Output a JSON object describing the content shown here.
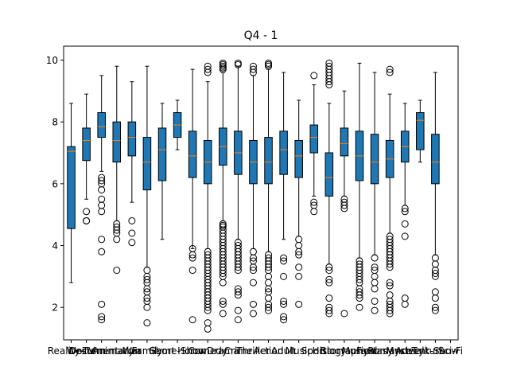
{
  "chart_data": {
    "type": "boxplot",
    "title": "Q4 - 1",
    "xlabel": "",
    "ylabel": "",
    "ylim": [
      0.95,
      10.45
    ],
    "yticks": [
      2,
      4,
      6,
      8,
      10
    ],
    "grid": false,
    "colors": {
      "box": "#1f77b4",
      "median": "#ff7f0e",
      "line": "#000000",
      "background": "#ffffff"
    },
    "categories": [
      "Reality-TV",
      "Western",
      "Documentary",
      "Animation",
      "War",
      "Family",
      "Short",
      "Game-Show",
      "Horror",
      "Comedy",
      "Drama",
      "Crime",
      "Thriller",
      "Action",
      "Adult",
      "Music",
      "Sport",
      "History",
      "Biography",
      "Musical",
      "Fantasy",
      "Romance",
      "Mystery",
      "Adventure",
      "Talk-Show",
      "Sci-Fi"
    ],
    "boxes": [
      {
        "name": "Reality-TV",
        "whislo": 2.8,
        "q1": 4.55,
        "med": 7.05,
        "q3": 7.2,
        "whishi": 8.6,
        "fliers": []
      },
      {
        "name": "Western",
        "whislo": 5.5,
        "q1": 6.75,
        "med": 7.4,
        "q3": 7.8,
        "whishi": 8.9,
        "fliers": [
          5.1,
          4.8,
          4.8
        ]
      },
      {
        "name": "Documentary",
        "whislo": 6.4,
        "q1": 7.5,
        "med": 7.85,
        "q3": 8.3,
        "whishi": 9.5,
        "fliers": [
          6.2,
          6.1,
          6.0,
          5.8,
          5.5,
          5.3,
          5.1,
          4.2,
          3.8,
          2.1,
          1.7,
          1.6
        ]
      },
      {
        "name": "Animation",
        "whislo": 4.8,
        "q1": 6.7,
        "med": 7.4,
        "q3": 8.0,
        "whishi": 9.8,
        "fliers": [
          4.7,
          4.6,
          4.5,
          4.4,
          4.2,
          3.2
        ]
      },
      {
        "name": "War",
        "whislo": 5.4,
        "q1": 6.9,
        "med": 7.5,
        "q3": 8.0,
        "whishi": 9.3,
        "fliers": [
          4.8,
          4.4,
          4.1
        ]
      },
      {
        "name": "Family",
        "whislo": 3.3,
        "q1": 5.8,
        "med": 6.7,
        "q3": 7.5,
        "whishi": 9.8,
        "fliers": [
          3.2,
          3.0,
          2.9,
          2.8,
          2.6,
          2.5,
          2.3,
          2.2,
          2.0,
          1.5
        ]
      },
      {
        "name": "Short",
        "whislo": 4.2,
        "q1": 6.1,
        "med": 7.1,
        "q3": 7.8,
        "whishi": 8.6,
        "fliers": []
      },
      {
        "name": "Game-Show",
        "whislo": 7.1,
        "q1": 7.5,
        "med": 7.9,
        "q3": 8.3,
        "whishi": 8.7,
        "fliers": []
      },
      {
        "name": "Horror",
        "whislo": 3.9,
        "q1": 6.2,
        "med": 6.9,
        "q3": 7.7,
        "whishi": 9.7,
        "fliers": [
          3.9,
          3.7,
          3.6,
          3.2,
          1.6
        ]
      },
      {
        "name": "Comedy",
        "whislo": 3.9,
        "q1": 6.0,
        "med": 6.7,
        "q3": 7.4,
        "whishi": 9.3,
        "fliers": [
          9.8,
          9.7,
          9.6,
          3.8,
          3.7,
          3.6,
          3.5,
          3.4,
          3.3,
          3.2,
          3.1,
          3.0,
          2.9,
          2.8,
          2.7,
          2.6,
          2.5,
          2.4,
          2.3,
          2.2,
          2.1,
          2.0,
          1.9,
          1.5,
          1.3
        ]
      },
      {
        "name": "Drama",
        "whislo": 4.8,
        "q1": 6.6,
        "med": 7.2,
        "q3": 7.8,
        "whishi": 9.6,
        "fliers": [
          9.9,
          9.85,
          9.8,
          9.75,
          9.7,
          4.7,
          4.65,
          4.6,
          4.5,
          4.4,
          4.3,
          4.2,
          4.1,
          4.0,
          3.9,
          3.8,
          3.7,
          3.6,
          3.5,
          3.4,
          3.3,
          3.2,
          3.1,
          3.0,
          2.8,
          2.2,
          2.1,
          1.8
        ]
      },
      {
        "name": "Crime",
        "whislo": 4.2,
        "q1": 6.3,
        "med": 7.0,
        "q3": 7.7,
        "whishi": 9.8,
        "fliers": [
          9.9,
          9.85,
          4.1,
          4.0,
          3.9,
          3.8,
          3.7,
          3.6,
          3.5,
          3.4,
          3.3,
          3.2,
          2.6,
          2.5,
          2.4,
          1.9,
          1.6
        ]
      },
      {
        "name": "Thriller",
        "whislo": 3.9,
        "q1": 6.0,
        "med": 6.7,
        "q3": 7.4,
        "whishi": 9.5,
        "fliers": [
          9.8,
          9.7,
          9.6,
          3.8,
          3.6,
          3.5,
          3.3,
          3.2,
          2.8,
          2.1,
          1.8
        ]
      },
      {
        "name": "Action",
        "whislo": 3.8,
        "q1": 6.0,
        "med": 6.7,
        "q3": 7.5,
        "whishi": 9.7,
        "fliers": [
          9.9,
          9.85,
          9.8,
          3.7,
          3.6,
          3.5,
          3.4,
          3.3,
          3.2,
          3.0,
          2.8,
          2.6,
          2.5,
          2.3,
          2.1,
          2.0,
          1.9
        ]
      },
      {
        "name": "Adult",
        "whislo": 4.2,
        "q1": 6.3,
        "med": 7.1,
        "q3": 7.7,
        "whishi": 9.6,
        "fliers": [
          3.6,
          3.5,
          3.0,
          2.2,
          2.1,
          1.7,
          1.6
        ]
      },
      {
        "name": "Music",
        "whislo": 4.3,
        "q1": 6.2,
        "med": 6.9,
        "q3": 7.4,
        "whishi": 8.7,
        "fliers": [
          4.2,
          4.0,
          3.8,
          3.7,
          3.3,
          3.0,
          2.1
        ]
      },
      {
        "name": "Sport",
        "whislo": 5.6,
        "q1": 7.0,
        "med": 7.5,
        "q3": 7.9,
        "whishi": 9.2,
        "fliers": [
          9.5,
          5.4,
          5.3,
          5.1
        ]
      },
      {
        "name": "History",
        "whislo": 3.4,
        "q1": 5.6,
        "med": 6.2,
        "q3": 7.0,
        "whishi": 8.6,
        "fliers": [
          9.9,
          9.8,
          9.7,
          9.6,
          9.5,
          9.4,
          9.3,
          9.2,
          3.3,
          3.2,
          2.9,
          2.8,
          2.3,
          2.0,
          1.9,
          1.8
        ]
      },
      {
        "name": "Biography",
        "whislo": 5.6,
        "q1": 6.9,
        "med": 7.3,
        "q3": 7.8,
        "whishi": 9.0,
        "fliers": [
          5.5,
          5.4,
          5.3,
          5.2,
          1.8
        ]
      },
      {
        "name": "Musical",
        "whislo": 3.6,
        "q1": 6.1,
        "med": 6.9,
        "q3": 7.7,
        "whishi": 9.9,
        "fliers": [
          3.5,
          3.4,
          3.3,
          3.2,
          3.1,
          3.0,
          2.9,
          2.8,
          2.6,
          2.5,
          2.4,
          2.3,
          2.0
        ]
      },
      {
        "name": "Fantasy",
        "whislo": 3.7,
        "q1": 6.0,
        "med": 6.7,
        "q3": 7.6,
        "whishi": 9.6,
        "fliers": [
          3.6,
          3.3,
          3.2,
          3.0,
          2.8,
          2.6,
          2.2,
          1.9
        ]
      },
      {
        "name": "Romance",
        "whislo": 4.4,
        "q1": 6.2,
        "med": 6.8,
        "q3": 7.4,
        "whishi": 8.9,
        "fliers": [
          9.7,
          9.6,
          4.3,
          4.2,
          4.1,
          4.0,
          3.9,
          3.8,
          3.7,
          3.6,
          3.5,
          3.4,
          3.3,
          2.8,
          2.7,
          2.4,
          2.2,
          2.1,
          2.0,
          1.9,
          1.8
        ]
      },
      {
        "name": "Mystery",
        "whislo": 5.3,
        "q1": 6.7,
        "med": 7.2,
        "q3": 7.7,
        "whishi": 8.6,
        "fliers": [
          5.2,
          5.1,
          4.7,
          4.3,
          2.3,
          2.1
        ]
      },
      {
        "name": "Adventure",
        "whislo": 6.7,
        "q1": 7.1,
        "med": 8.05,
        "q3": 8.3,
        "whishi": 8.7,
        "fliers": []
      },
      {
        "name": "Talk-Show",
        "whislo": 3.7,
        "q1": 6.0,
        "med": 6.7,
        "q3": 7.6,
        "whishi": 9.6,
        "fliers": [
          3.6,
          3.4,
          3.2,
          3.1,
          3.0,
          2.5,
          2.3,
          2.0,
          1.9
        ]
      },
      {
        "name": "Sci-Fi",
        "whislo": null,
        "q1": null,
        "med": null,
        "q3": null,
        "whishi": null,
        "fliers": []
      }
    ]
  }
}
